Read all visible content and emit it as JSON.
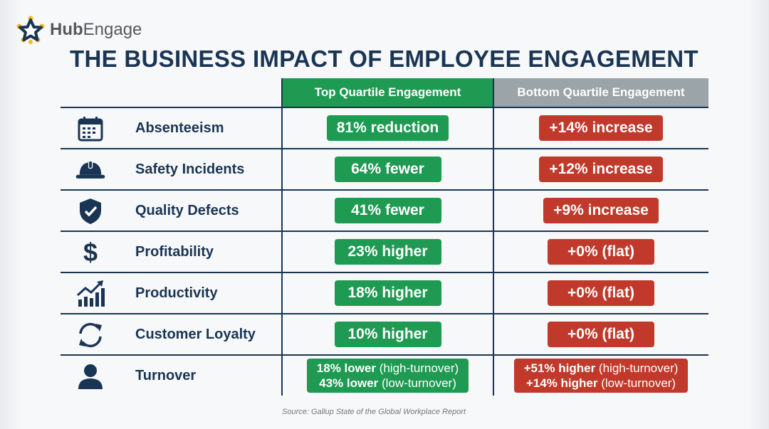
{
  "logo": {
    "text_bold": "Hub",
    "text_regular": "Engage"
  },
  "title": "THE BUSINESS IMPACT OF EMPLOYEE ENGAGEMENT",
  "columns": {
    "top": "Top Quartile Engagement",
    "bottom": "Bottom Quartile Engagement"
  },
  "colors": {
    "green": "#1f9a52",
    "red": "#c0392b",
    "navy": "#1a3554",
    "gray_header": "#9aa4a9",
    "logo_dots": "#f2b824"
  },
  "rows": [
    {
      "icon": "calendar-icon",
      "label": "Absenteeism",
      "top": "81% reduction",
      "bottom": "+14% increase"
    },
    {
      "icon": "hard-hat-icon",
      "label": "Safety Incidents",
      "top": "64% fewer",
      "bottom": "+12% increase"
    },
    {
      "icon": "shield-check-icon",
      "label": "Quality Defects",
      "top": "41% fewer",
      "bottom": "+9% increase"
    },
    {
      "icon": "dollar-icon",
      "label": "Profitability",
      "top": "23% higher",
      "bottom": "+0% (flat)"
    },
    {
      "icon": "growth-chart-icon",
      "label": "Productivity",
      "top": "18% higher",
      "bottom": "+0% (flat)"
    },
    {
      "icon": "refresh-icon",
      "label": "Customer Loyalty",
      "top": "10% higher",
      "bottom": "+0% (flat)"
    }
  ],
  "turnover": {
    "icon": "person-icon",
    "label": "Turnover",
    "top": [
      {
        "value": "18% lower",
        "note": "(high-turnover)"
      },
      {
        "value": "43% lower",
        "note": "(low-turnover)"
      }
    ],
    "bottom": [
      {
        "value": "+51% higher",
        "note": "(high-turnover)"
      },
      {
        "value": "+14% higher",
        "note": "(low-turnover)"
      }
    ]
  },
  "source": "Source: Gallup State of the Global Workplace Report"
}
